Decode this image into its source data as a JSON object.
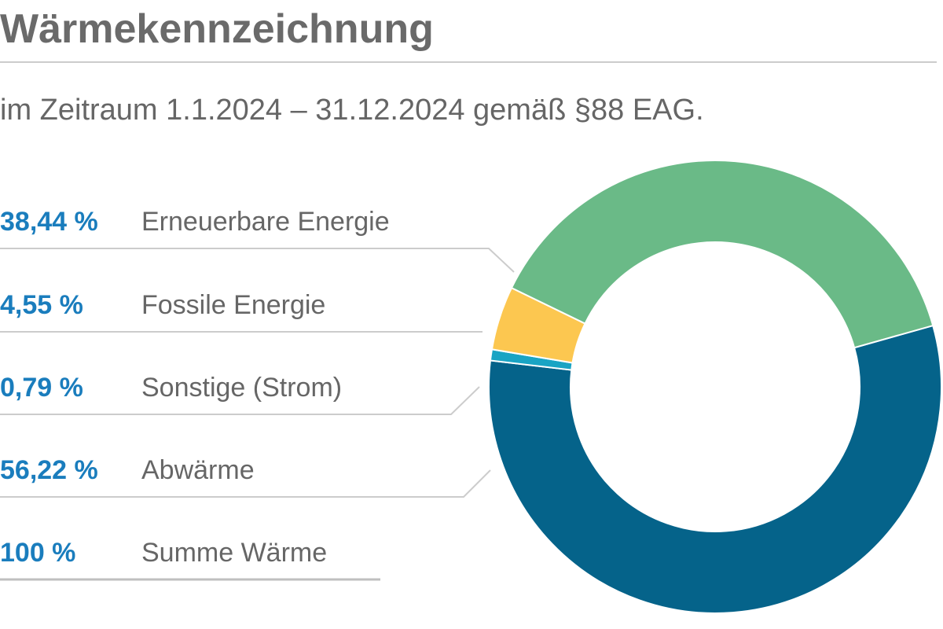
{
  "header": {
    "title": "Wärmekennzeichnung",
    "subtitle": "im Zeitraum 1.1.2024 – 31.12.2024 gemäß §88 EAG."
  },
  "legend": [
    {
      "value": "38,44 %",
      "label": "Erneuerbare Energie"
    },
    {
      "value": "4,55 %",
      "label": "Fossile Energie"
    },
    {
      "value": "0,79 %",
      "label": "Sonstige (Strom)"
    },
    {
      "value": "56,22 %",
      "label": "Abwärme"
    },
    {
      "value": "100 %",
      "label": "Summe Wärme"
    }
  ],
  "colors": {
    "value_text": "#1a7dbd",
    "label_text": "#666666",
    "rule": "#cccccc",
    "total_rule": "#bfbfbf"
  },
  "chart_data": {
    "type": "pie",
    "style": "donut",
    "categories": [
      "Erneuerbare Energie",
      "Fossile Energie",
      "Sonstige (Strom)",
      "Abwärme"
    ],
    "values": [
      38.44,
      4.55,
      0.79,
      56.22
    ],
    "unit": "%",
    "colors": [
      "#6aba87",
      "#fcc750",
      "#19a4c4",
      "#05638a"
    ],
    "total": 100,
    "total_label": "Summe Wärme"
  }
}
